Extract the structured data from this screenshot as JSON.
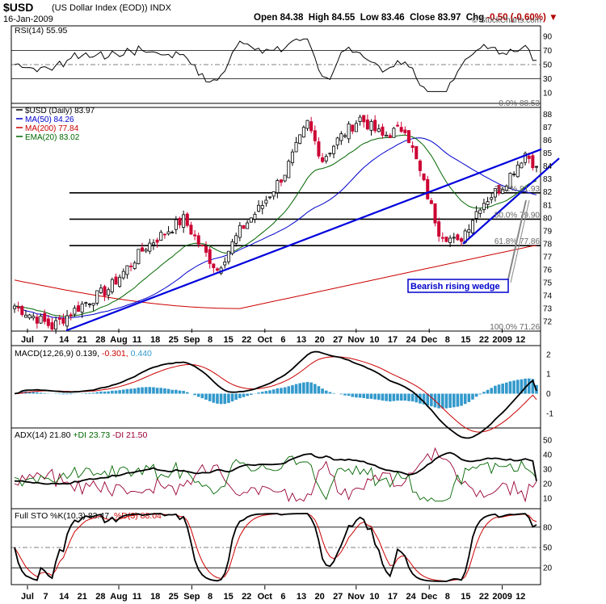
{
  "header": {
    "symbol": "$USD",
    "name": "(US Dollar Index (EOD))",
    "exchange": "INDX",
    "date": "16-Jan-2009",
    "open_label": "Open",
    "open": "84.38",
    "high_label": "High",
    "high": "84.55",
    "low_label": "Low",
    "low": "83.46",
    "close_label": "Close",
    "close": "83.97",
    "chg_label": "Chg",
    "chg": "-0.50 (-0.60%)",
    "copyright": "© StockCharts.com"
  },
  "colors": {
    "candle_up": "#000000",
    "candle_down": "#cc0033",
    "ma50": "#0000cc",
    "ma200": "#cc0000",
    "ema20": "#006600",
    "trendline": "#0000dd",
    "macd_hist": "#3399cc",
    "rsi_fill": "#5a7a5a"
  },
  "panels": {
    "rsi": {
      "title": "RSI(14) 55.95",
      "ticks": [
        "90",
        "70",
        "50",
        "30",
        "10"
      ]
    },
    "price": {
      "legend": [
        {
          "text": "$USD (Daily) 83.97",
          "color": "#000000"
        },
        {
          "text": "MA(50) 84.26",
          "color": "#0000cc"
        },
        {
          "text": "MA(200) 77.84",
          "color": "#cc0000"
        },
        {
          "text": "EMA(20) 83.02",
          "color": "#006600"
        }
      ],
      "ticks": [
        "88",
        "87",
        "86",
        "85",
        "84",
        "83",
        "82",
        "81",
        "80",
        "79",
        "78",
        "77",
        "76",
        "75",
        "74",
        "73",
        "72"
      ],
      "fib_labels": [
        "0.0% 88.53",
        "38.2% 81.93",
        "50.0% 79.90",
        "61.8% 77.86",
        "100.0% 71.26"
      ],
      "annotation": "Bearish rising wedge"
    },
    "macd": {
      "title_a": "MACD(12,26,9) 0.139,",
      "title_b": "-0.301,",
      "title_c": "0.440",
      "ticks": [
        "2",
        "1",
        "0",
        "-1"
      ]
    },
    "adx": {
      "title_a": "ADX(14) 21.80",
      "title_b": "+DI 23.73",
      "title_c": "-DI 21.50",
      "ticks": [
        "50",
        "40",
        "30",
        "20",
        "10"
      ]
    },
    "sto": {
      "title_a": "Full STO %K(10,3) 83.47,",
      "title_b": "%D(3) 88.04",
      "ticks": [
        "80",
        "50",
        "20"
      ]
    }
  },
  "x_axis": {
    "labels": [
      "Jul",
      "7",
      "14",
      "21",
      "28",
      "Aug",
      "11",
      "18",
      "25",
      "Sep",
      "8",
      "15",
      "22",
      "Oct",
      "6",
      "13",
      "20",
      "27",
      "Nov",
      "10",
      "17",
      "24",
      "Dec",
      "8",
      "15",
      "22",
      "2009",
      "12"
    ]
  },
  "chart_data": [
    {
      "type": "candlestick",
      "title": "$USD (Daily) 83.97",
      "series_names": [
        "MA(50)",
        "MA(200)",
        "EMA(20)"
      ],
      "ylim": [
        71.26,
        88.53
      ],
      "x_range": [
        "2008-07-01",
        "2009-01-16"
      ],
      "key_points": [
        {
          "date": "2008-07-15",
          "close": 71.5
        },
        {
          "date": "2008-08-29",
          "close": 77.5
        },
        {
          "date": "2008-09-11",
          "close": 80.2
        },
        {
          "date": "2008-09-22",
          "close": 76.2
        },
        {
          "date": "2008-10-27",
          "close": 87.2
        },
        {
          "date": "2008-11-21",
          "close": 88.2
        },
        {
          "date": "2008-12-17",
          "close": 78.3
        },
        {
          "date": "2009-01-16",
          "close": 83.97
        }
      ],
      "fibonacci": [
        {
          "level": "0.0%",
          "value": 88.53
        },
        {
          "level": "38.2%",
          "value": 81.93
        },
        {
          "level": "50.0%",
          "value": 79.9
        },
        {
          "level": "61.8%",
          "value": 77.86
        },
        {
          "level": "100.0%",
          "value": 71.26
        }
      ],
      "last_values": {
        "close": 83.97,
        "ma50": 84.26,
        "ma200": 77.84,
        "ema20": 83.02
      }
    },
    {
      "type": "line",
      "title": "RSI(14)",
      "ylim": [
        0,
        100
      ],
      "last": 55.95
    },
    {
      "type": "line",
      "title": "MACD(12,26,9)",
      "ylim": [
        -1.5,
        2.2
      ],
      "last": {
        "macd": 0.139,
        "signal": -0.301,
        "histogram": 0.44
      }
    },
    {
      "type": "line",
      "title": "ADX(14)",
      "ylim": [
        5,
        55
      ],
      "last": {
        "adx": 21.8,
        "plus_di": 23.73,
        "minus_di": 21.5
      }
    },
    {
      "type": "line",
      "title": "Full STO %K(10,3)",
      "ylim": [
        0,
        100
      ],
      "last": {
        "k": 83.47,
        "d": 88.04
      }
    }
  ]
}
